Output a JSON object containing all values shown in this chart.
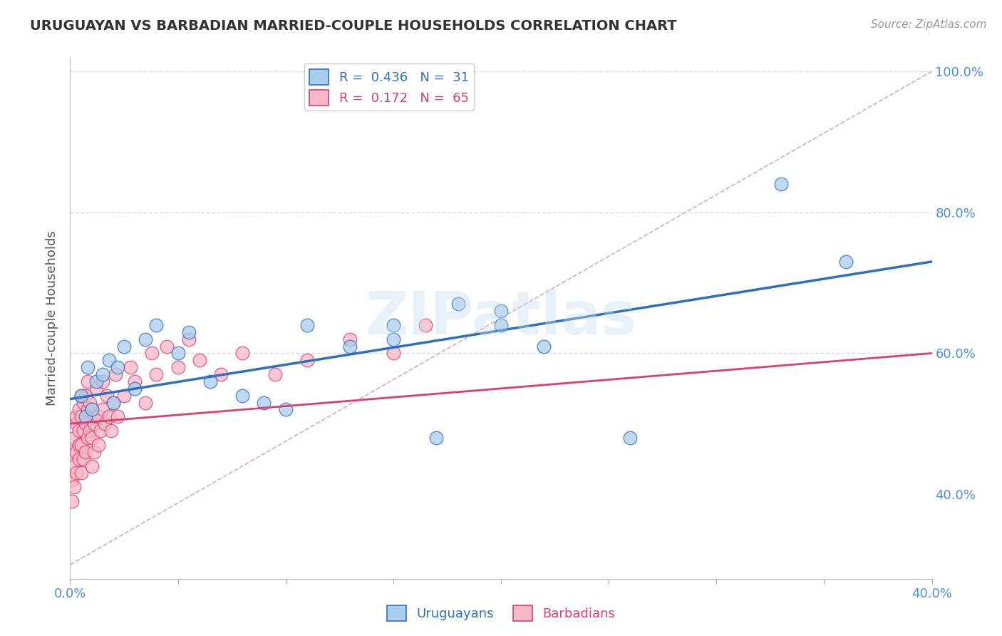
{
  "title": "URUGUAYAN VS BARBADIAN MARRIED-COUPLE HOUSEHOLDS CORRELATION CHART",
  "source": "Source: ZipAtlas.com",
  "ylabel": "Married-couple Households",
  "xlim": [
    0.0,
    0.4
  ],
  "ylim": [
    0.28,
    1.02
  ],
  "blue_color": "#A8CDED",
  "pink_color": "#F9B8C8",
  "blue_line_color": "#2E6FBF",
  "pink_line_color": "#D94070",
  "ref_line_color": "#DDAABB",
  "grid_color": "#DDDDDD",
  "legend_blue_label": "R =  0.436   N =  31",
  "legend_pink_label": "R =  0.172   N =  65",
  "watermark": "ZIPatlas",
  "background_color": "#FFFFFF",
  "uruguayan_x": [
    0.005,
    0.007,
    0.008,
    0.01,
    0.012,
    0.015,
    0.018,
    0.02,
    0.022,
    0.025,
    0.03,
    0.035,
    0.04,
    0.05,
    0.055,
    0.065,
    0.08,
    0.09,
    0.1,
    0.11,
    0.13,
    0.15,
    0.17,
    0.2,
    0.22,
    0.26,
    0.33,
    0.36,
    0.15,
    0.18,
    0.2
  ],
  "uruguayan_y": [
    0.54,
    0.51,
    0.58,
    0.52,
    0.56,
    0.57,
    0.59,
    0.53,
    0.58,
    0.61,
    0.55,
    0.62,
    0.64,
    0.6,
    0.63,
    0.56,
    0.54,
    0.53,
    0.52,
    0.64,
    0.61,
    0.62,
    0.48,
    0.64,
    0.61,
    0.48,
    0.84,
    0.73,
    0.64,
    0.67,
    0.66
  ],
  "barbadian_x": [
    0.001,
    0.001,
    0.001,
    0.002,
    0.002,
    0.002,
    0.003,
    0.003,
    0.003,
    0.003,
    0.004,
    0.004,
    0.004,
    0.004,
    0.005,
    0.005,
    0.005,
    0.005,
    0.006,
    0.006,
    0.006,
    0.007,
    0.007,
    0.007,
    0.008,
    0.008,
    0.008,
    0.009,
    0.009,
    0.01,
    0.01,
    0.01,
    0.011,
    0.011,
    0.012,
    0.012,
    0.013,
    0.013,
    0.014,
    0.015,
    0.015,
    0.016,
    0.017,
    0.018,
    0.019,
    0.02,
    0.021,
    0.022,
    0.025,
    0.028,
    0.03,
    0.035,
    0.038,
    0.04,
    0.045,
    0.05,
    0.055,
    0.06,
    0.07,
    0.08,
    0.095,
    0.11,
    0.13,
    0.15,
    0.165
  ],
  "barbadian_y": [
    0.42,
    0.46,
    0.39,
    0.44,
    0.48,
    0.41,
    0.5,
    0.46,
    0.43,
    0.51,
    0.47,
    0.52,
    0.45,
    0.49,
    0.43,
    0.47,
    0.51,
    0.54,
    0.45,
    0.49,
    0.53,
    0.46,
    0.5,
    0.54,
    0.48,
    0.52,
    0.56,
    0.49,
    0.53,
    0.44,
    0.48,
    0.52,
    0.5,
    0.46,
    0.51,
    0.55,
    0.47,
    0.51,
    0.49,
    0.52,
    0.56,
    0.5,
    0.54,
    0.51,
    0.49,
    0.53,
    0.57,
    0.51,
    0.54,
    0.58,
    0.56,
    0.53,
    0.6,
    0.57,
    0.61,
    0.58,
    0.62,
    0.59,
    0.57,
    0.6,
    0.57,
    0.59,
    0.62,
    0.6,
    0.64
  ],
  "blue_trend_x0": 0.0,
  "blue_trend_y0": 0.535,
  "blue_trend_x1": 0.4,
  "blue_trend_y1": 0.73,
  "pink_trend_x0": 0.0,
  "pink_trend_y0": 0.5,
  "pink_trend_x1": 0.4,
  "pink_trend_y1": 0.6,
  "ref_line_x0": 0.0,
  "ref_line_y0": 0.3,
  "ref_line_x1": 0.4,
  "ref_line_y1": 1.0
}
